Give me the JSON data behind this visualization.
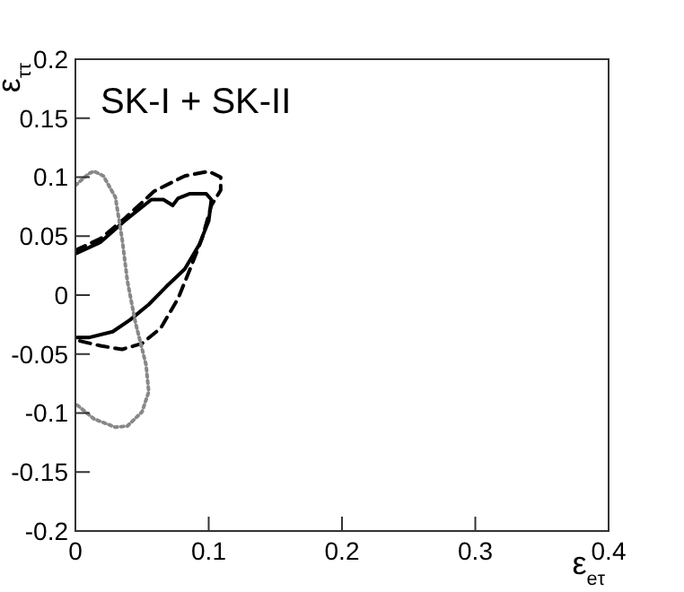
{
  "chart_data": {
    "type": "line",
    "xlabel": "ε$_{eτ}$",
    "ylabel": "ε$_{ττ}$",
    "annotations": [
      "SK-I + SK-II"
    ],
    "xlim": [
      0,
      0.4
    ],
    "ylim": [
      -0.2,
      0.2
    ],
    "xticks": [
      0,
      0.1,
      0.2,
      0.3,
      0.4
    ],
    "yticks": [
      -0.2,
      -0.15,
      -0.1,
      -0.05,
      0,
      0.05,
      0.1,
      0.15,
      0.2
    ],
    "marker": "none",
    "series": [
      {
        "color": "#000000",
        "line_style": "solid",
        "x": [
          0,
          0.019,
          0.037,
          0.057,
          0.066,
          0.073,
          0.077,
          0.086,
          0.098,
          0.102,
          0.1,
          0.093,
          0.082,
          0.068,
          0.055,
          0.041,
          0.028,
          0.01,
          0
        ],
        "values": [
          0.035,
          0.045,
          0.063,
          0.081,
          0.081,
          0.076,
          0.082,
          0.086,
          0.086,
          0.081,
          0.063,
          0.043,
          0.022,
          0.007,
          -0.008,
          -0.021,
          -0.031,
          -0.036,
          -0.036
        ]
      },
      {
        "color": "#000000",
        "line_style": "dashed",
        "x": [
          0,
          0.019,
          0.037,
          0.059,
          0.082,
          0.1,
          0.109,
          0.109,
          0.102,
          0.095,
          0.086,
          0.077,
          0.064,
          0.05,
          0.035,
          0.019,
          0
        ],
        "values": [
          0.038,
          0.048,
          0.065,
          0.088,
          0.101,
          0.105,
          0.1,
          0.089,
          0.076,
          0.048,
          0.022,
          -0.003,
          -0.028,
          -0.041,
          -0.046,
          -0.043,
          -0.038
        ]
      },
      {
        "color": "#888888",
        "line_style": "dotted",
        "x": [
          0,
          0.01,
          0.014,
          0.021,
          0.03,
          0.035,
          0.039,
          0.045,
          0.053,
          0.055,
          0.05,
          0.039,
          0.03,
          0.014,
          0
        ],
        "values": [
          0.093,
          0.103,
          0.105,
          0.101,
          0.083,
          0.048,
          0.012,
          -0.023,
          -0.059,
          -0.082,
          -0.099,
          -0.111,
          -0.112,
          -0.105,
          -0.092
        ]
      }
    ]
  }
}
